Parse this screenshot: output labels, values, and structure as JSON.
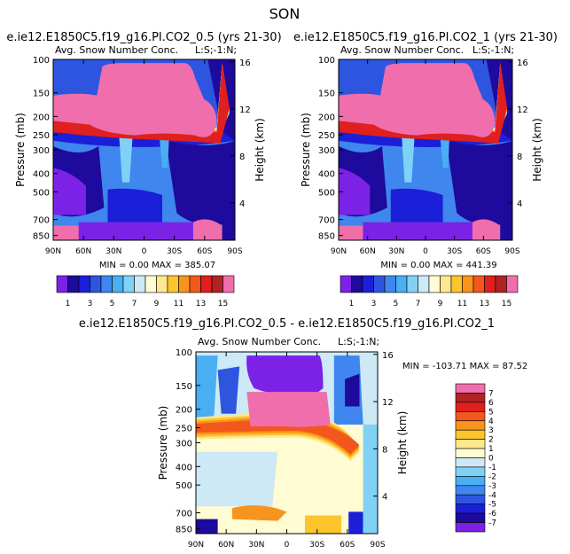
{
  "figure": {
    "title": "SON",
    "colors": {
      "absolute_palette": [
        "#7b22e6",
        "#1e0a9c",
        "#1c1fd8",
        "#2e55e0",
        "#3f86ee",
        "#49aef2",
        "#7fd2f6",
        "#cde9f6",
        "#fffbd3",
        "#fde88f",
        "#fcc52b",
        "#f7941d",
        "#f2571e",
        "#e01f1f",
        "#b22222",
        "#f06eab"
      ],
      "difference_palette": [
        "#7b22e6",
        "#1e0a9c",
        "#1c1fd8",
        "#2e55e0",
        "#3f86ee",
        "#49aef2",
        "#7fd2f6",
        "#cde9f6",
        "#fffbd3",
        "#fde88f",
        "#fcc52b",
        "#f7941d",
        "#f2571e",
        "#e01f1f",
        "#b22222",
        "#f06eab"
      ]
    }
  },
  "chart_data": [
    {
      "type": "heatmap",
      "title": "e.ie12.E1850C5.f19_g16.PI.CO2_0.5 (yrs 21-30)",
      "subtitle": "Avg. Snow Number Conc.",
      "level_label": "L:S;-1:N;",
      "ylabel": "Pressure (mb)",
      "ylabel_right": "Height (km)",
      "x_ticks": [
        "90N",
        "60N",
        "30N",
        "0",
        "30S",
        "60S",
        "90S"
      ],
      "y_ticks": [
        "100",
        "150",
        "200",
        "250",
        "300",
        "400",
        "500",
        "700",
        "850"
      ],
      "y_ticks_right": [
        "16",
        "12",
        "8",
        "4"
      ],
      "min_label": "MIN =",
      "min_value": "0.00",
      "max_label": "MAX =",
      "max_value": "385.07",
      "colorbar_labels": [
        "1",
        "3",
        "5",
        "7",
        "9",
        "11",
        "13",
        "15"
      ]
    },
    {
      "type": "heatmap",
      "title": "e.ie12.E1850C5.f19_g16.PI.CO2_1 (yrs 21-30)",
      "subtitle": "Avg. Snow Number Conc.",
      "level_label": "L:S;-1:N;",
      "ylabel": "Pressure (mb)",
      "ylabel_right": "Height (km)",
      "x_ticks": [
        "90N",
        "60N",
        "30N",
        "0",
        "30S",
        "60S",
        "90S"
      ],
      "y_ticks": [
        "100",
        "150",
        "200",
        "250",
        "300",
        "400",
        "500",
        "700",
        "850"
      ],
      "y_ticks_right": [
        "16",
        "12",
        "8",
        "4"
      ],
      "min_label": "MIN =",
      "min_value": "0.00",
      "max_label": "MAX =",
      "max_value": "441.39",
      "colorbar_labels": [
        "1",
        "3",
        "5",
        "7",
        "9",
        "11",
        "13",
        "15"
      ]
    },
    {
      "type": "heatmap",
      "title": "e.ie12.E1850C5.f19_g16.PI.CO2_0.5 - e.ie12.E1850C5.f19_g16.PI.CO2_1",
      "subtitle": "Avg. Snow Number Conc.",
      "level_label": "L:S;-1:N;",
      "ylabel": "Pressure (mb)",
      "ylabel_right": "Height (km)",
      "x_ticks": [
        "90N",
        "60N",
        "30N",
        "0",
        "30S",
        "60S",
        "90S"
      ],
      "y_ticks": [
        "100",
        "150",
        "200",
        "250",
        "300",
        "400",
        "500",
        "700",
        "850"
      ],
      "y_ticks_right": [
        "16",
        "12",
        "8",
        "4"
      ],
      "min_label": "MIN =",
      "min_value": "-103.71",
      "max_label": "MAX =",
      "max_value": "87.52",
      "colorbar_labels": [
        "7",
        "6",
        "5",
        "4",
        "3",
        "2",
        "1",
        "0",
        "-1",
        "-2",
        "-3",
        "-4",
        "-5",
        "-6",
        "-7"
      ]
    }
  ]
}
